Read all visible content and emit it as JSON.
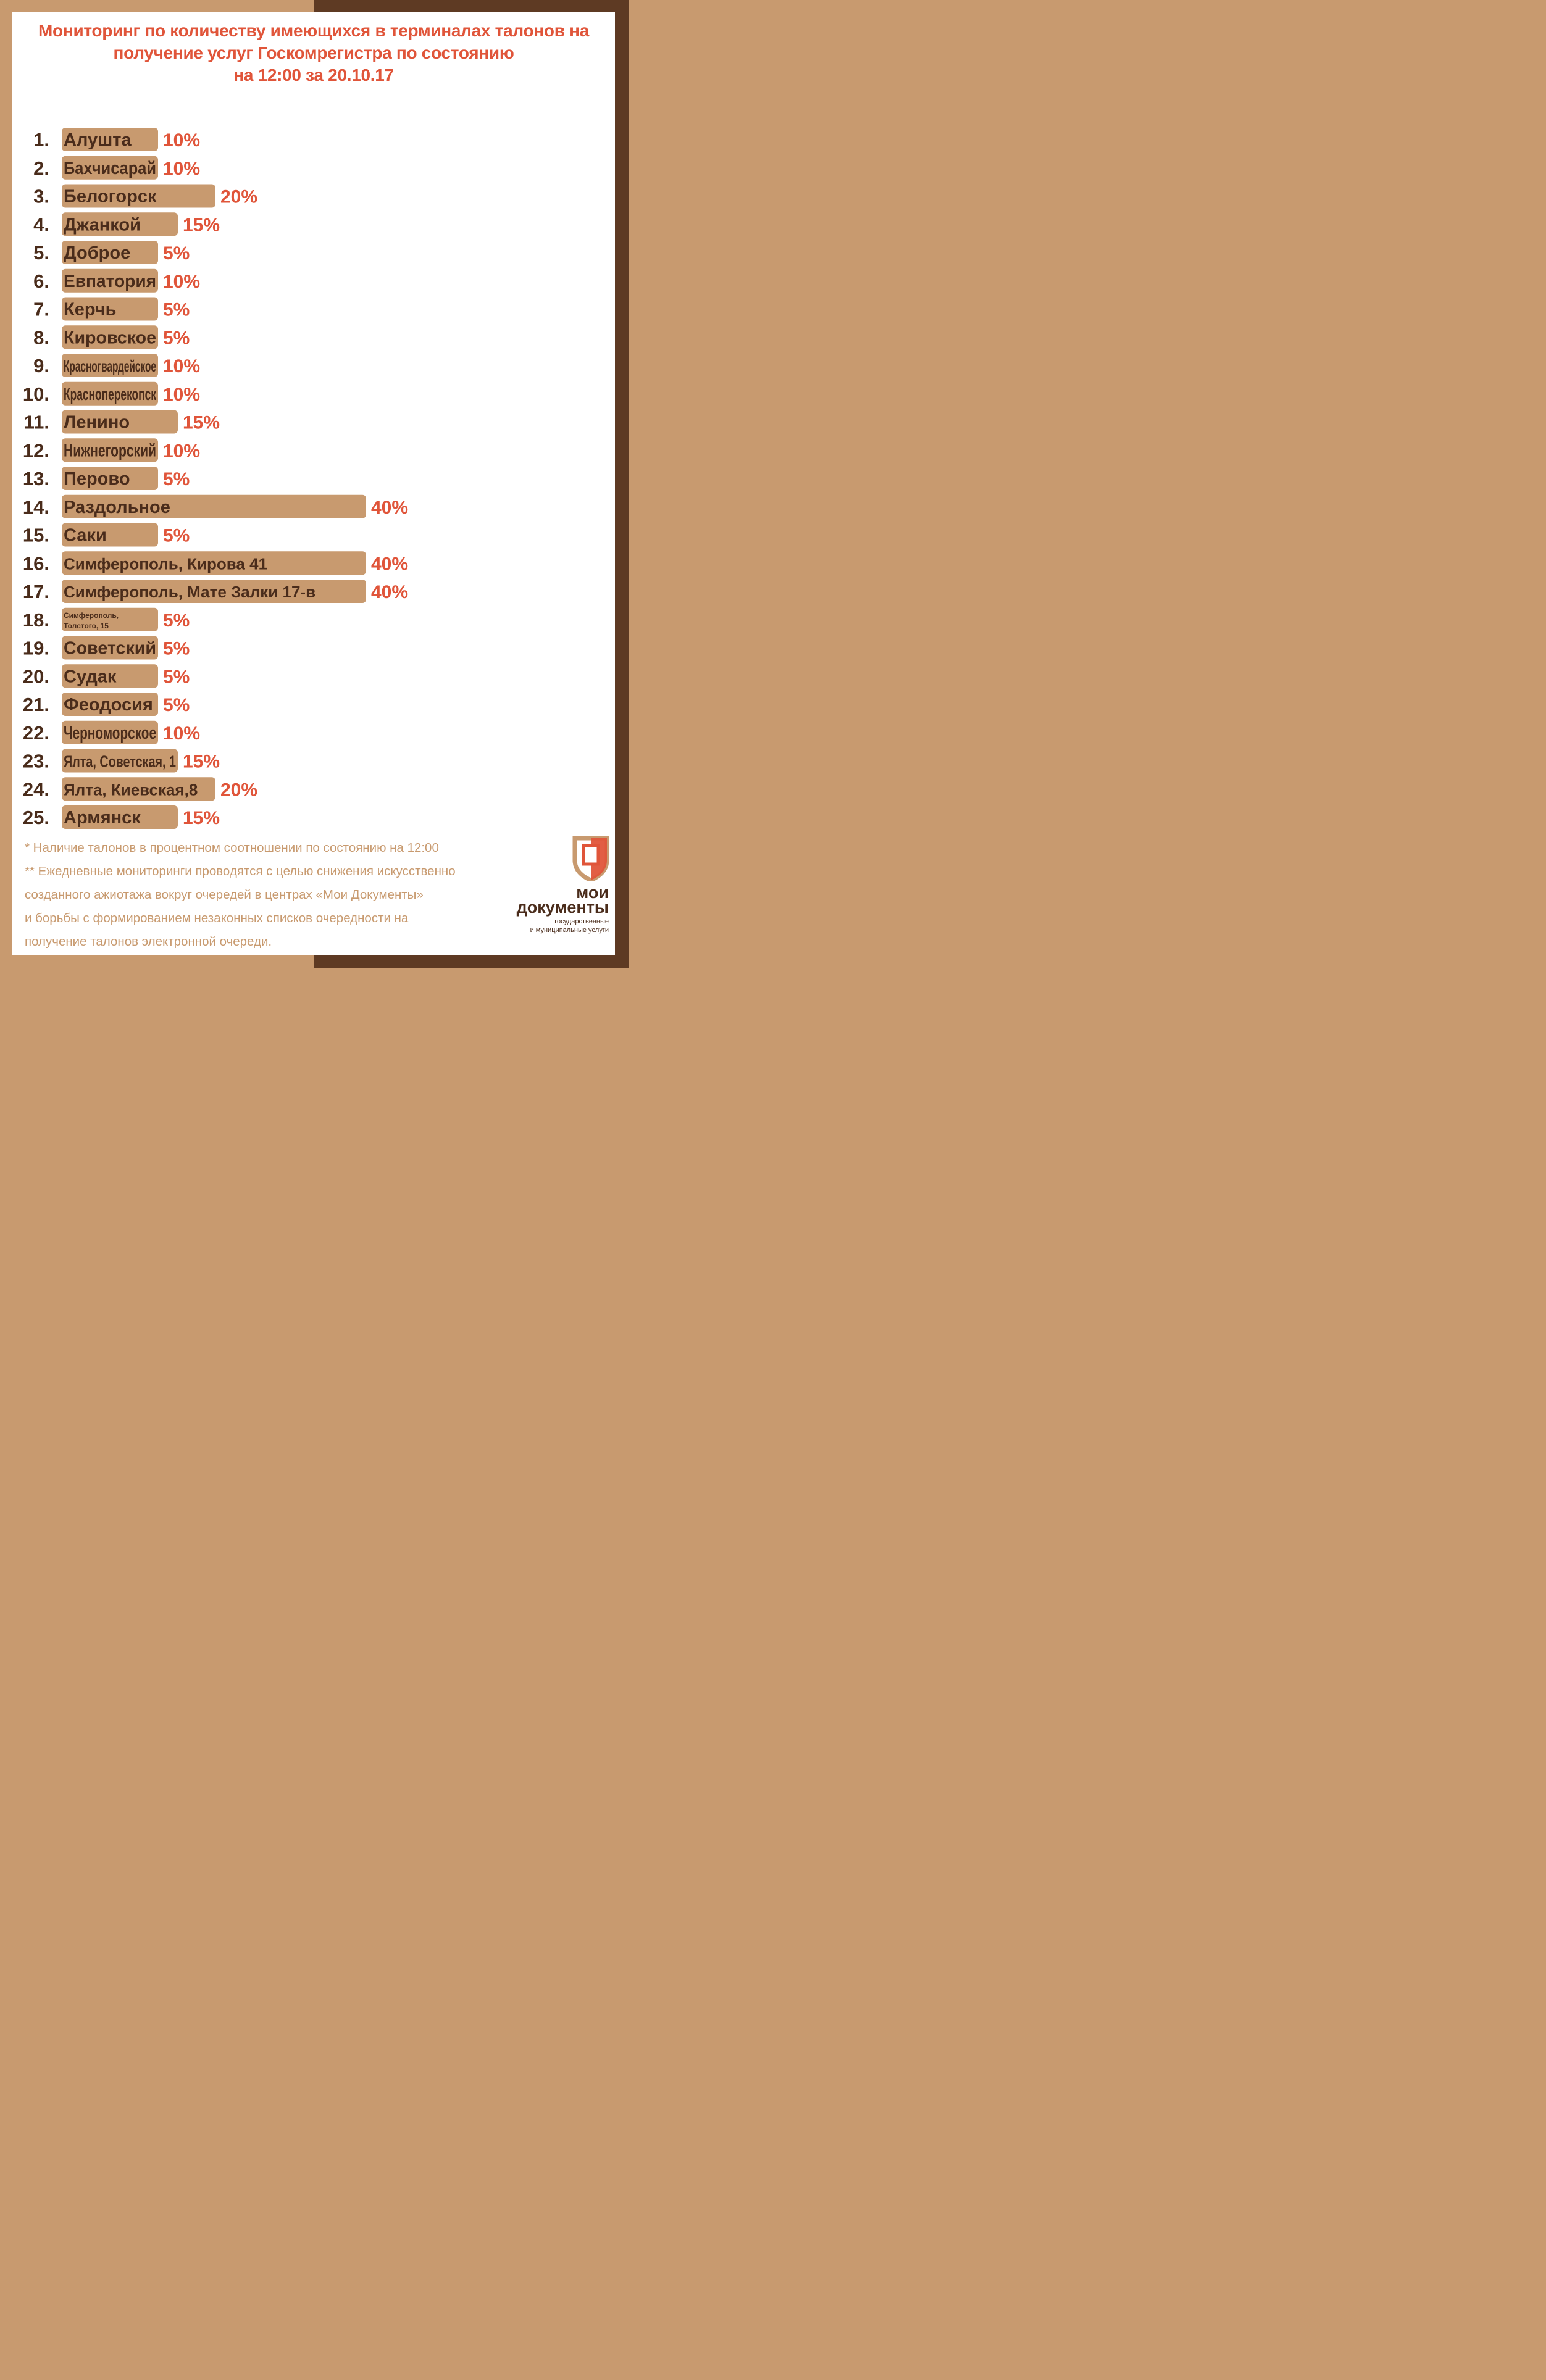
{
  "title_lines": [
    "Мониторинг по количеству имеющихся в терминалах талонов на",
    "получение услуг Госкомрегистра по состоянию",
    "на 12:00 за 20.10.17"
  ],
  "colors": {
    "accent": "#e0553a",
    "bar": "#c89a6f",
    "dark": "#4a2c1b",
    "frame_left": "#c89a6f",
    "frame_right": "#5e3a23"
  },
  "chart_data": {
    "type": "bar",
    "orientation": "horizontal",
    "ranks": [
      "1.",
      "2.",
      "3.",
      "4.",
      "5.",
      "6.",
      "7.",
      "8.",
      "9.",
      "10.",
      "11.",
      "12.",
      "13.",
      "14.",
      "15.",
      "16.",
      "17.",
      "18.",
      "19.",
      "20.",
      "21.",
      "22.",
      "23.",
      "24.",
      "25."
    ],
    "categories": [
      "Алушта",
      "Бахчисарай",
      "Белогорск",
      "Джанкой",
      "Доброе",
      "Евпатория",
      "Керчь",
      "Кировское",
      "Красногвардейское",
      "Красноперекопск",
      "Ленино",
      "Нижнегорский",
      "Перово",
      "Раздольное",
      "Саки",
      "Симферополь, Кирова 41",
      "Симферополь, Мате Залки 17-в",
      "Симферополь, Толстого, 15",
      "Советский",
      "Судак",
      "Феодосия",
      "Черноморское",
      "Ялта, Советская, 1",
      "Ялта, Киевская,8",
      "Армянск"
    ],
    "values": [
      10,
      10,
      20,
      15,
      5,
      10,
      5,
      5,
      10,
      10,
      15,
      10,
      5,
      40,
      5,
      40,
      40,
      5,
      5,
      5,
      5,
      10,
      15,
      20,
      15
    ],
    "value_labels": [
      "10%",
      "10%",
      "20%",
      "15%",
      "5%",
      "10%",
      "5%",
      "5%",
      "10%",
      "10%",
      "15%",
      "10%",
      "5%",
      "40%",
      "5%",
      "40%",
      "40%",
      "5%",
      "5%",
      "5%",
      "5%",
      "10%",
      "15%",
      "20%",
      "15%"
    ],
    "grid": false,
    "legend": "none"
  },
  "notes": [
    "* Наличие талонов в процентном соотношении по состоянию на 12:00",
    "** Ежедневные мониторинги проводятся с целью снижения искусственно",
    "созданного ажиотажа вокруг очередей в центрах «Мои Документы»",
    "и борьбы с формированием незаконных списков очередности на",
    "получение талонов электронной очереди."
  ],
  "logo": {
    "icon": "moi-dokumenty-logo-icon",
    "title_line1": "мои",
    "title_line2": "документы",
    "subtitle_line1": "государственные",
    "subtitle_line2": "и муниципальные услуги"
  }
}
